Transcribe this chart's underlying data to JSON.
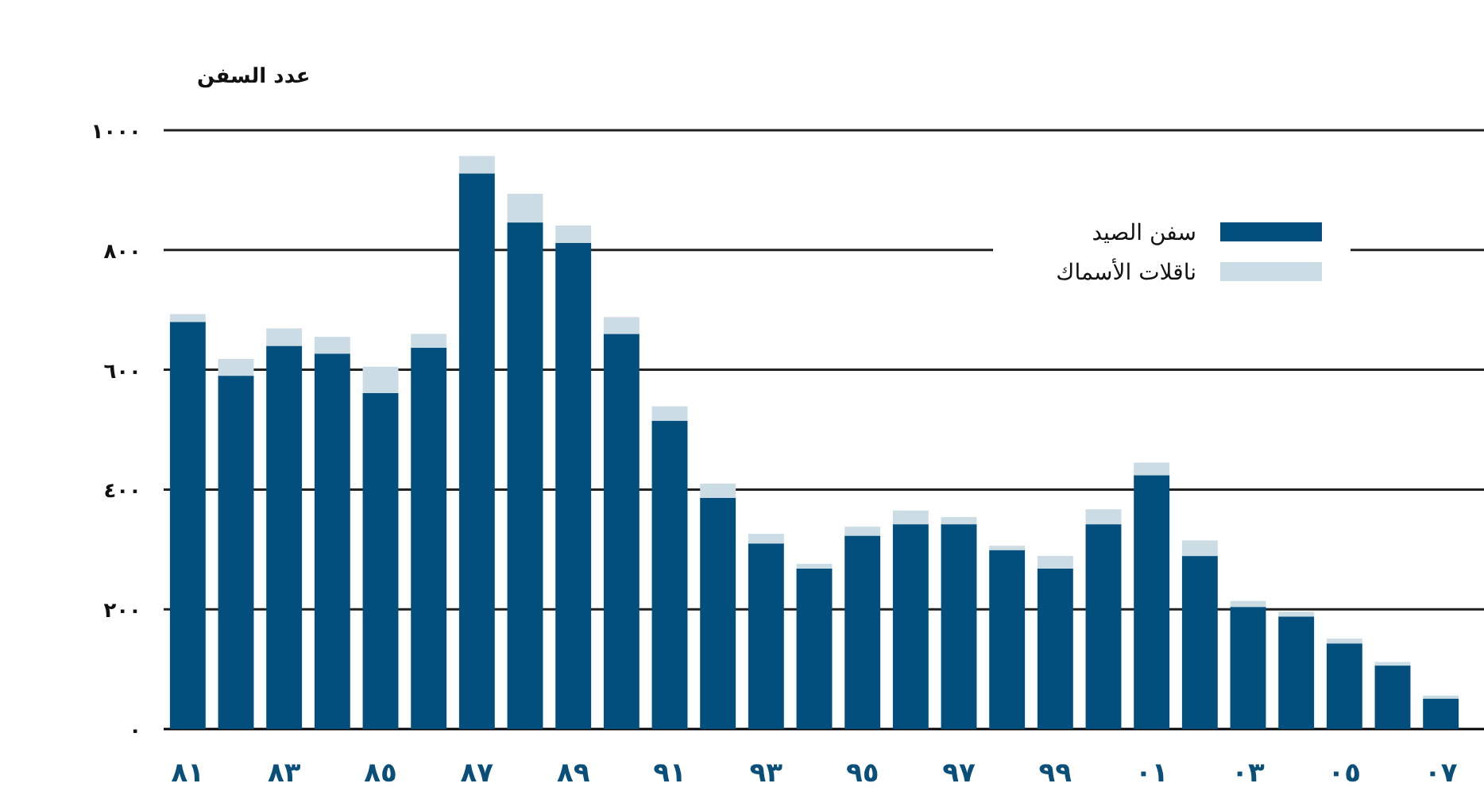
{
  "chart_data": {
    "type": "bar",
    "stacked": true,
    "ylabel": "عدد السفن",
    "categories": [
      "٨١",
      null,
      "٨٣",
      null,
      "٨٥",
      null,
      "٨٧",
      null,
      "٨٩",
      null,
      "٩١",
      null,
      "٩٣",
      null,
      "٩٥",
      null,
      "٩٧",
      null,
      "٩٩",
      null,
      "٠١",
      null,
      "٠٣",
      null,
      "٠٥",
      null,
      "٠٧"
    ],
    "series": [
      {
        "name": "سفن الصيد",
        "color": "#024f7d",
        "values": [
          680,
          590,
          640,
          627,
          561,
          637,
          928,
          846,
          812,
          660,
          515,
          386,
          310,
          268,
          323,
          342,
          342,
          299,
          268,
          342,
          424,
          289,
          204,
          188,
          143,
          106,
          51
        ]
      },
      {
        "name": "ناقلات الأسماك",
        "color": "#ccdce4",
        "values": [
          13,
          28,
          29,
          28,
          44,
          23,
          29,
          48,
          29,
          28,
          24,
          24,
          16,
          8,
          15,
          23,
          12,
          7,
          21,
          25,
          21,
          26,
          10,
          8,
          8,
          6,
          5
        ]
      }
    ],
    "ylim": [
      0,
      1000
    ],
    "yticks": [
      {
        "value": 0,
        "label": "٠"
      },
      {
        "value": 200,
        "label": "٢٠٠"
      },
      {
        "value": 400,
        "label": "٤٠٠"
      },
      {
        "value": 600,
        "label": "٦٠٠"
      },
      {
        "value": 800,
        "label": "٨٠٠"
      },
      {
        "value": 1000,
        "label": "١٠٠٠"
      }
    ],
    "grid": "y",
    "legend": "top right"
  }
}
